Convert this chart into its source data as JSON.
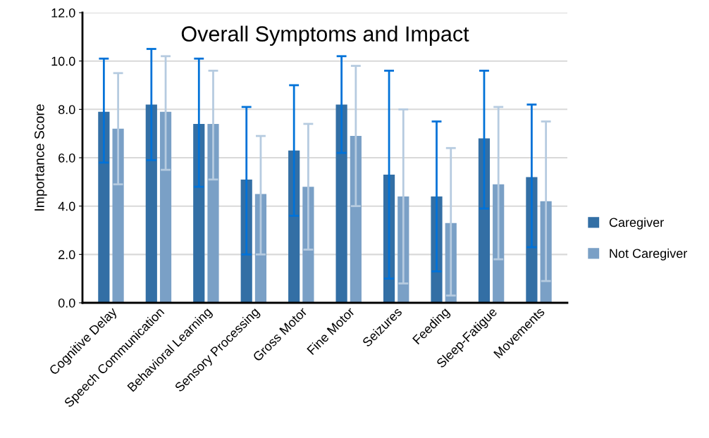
{
  "chart_data": {
    "type": "bar",
    "title": "Overall Symptoms and Impact",
    "ylabel": "Importance Score",
    "categories": [
      "Cognitive Delay",
      "Speech Communication",
      "Behavioral Learning",
      "Sensory Processing",
      "Gross Motor",
      "Fine Motor",
      "Seizures",
      "Feeding",
      "Sleep-Fatigue",
      "Movements"
    ],
    "series": [
      {
        "name": "Caregiver",
        "color": "#336fa5",
        "values": [
          7.9,
          8.2,
          7.4,
          5.1,
          6.3,
          8.2,
          5.3,
          4.4,
          6.8,
          5.2
        ],
        "errors": [
          [
            5.8,
            10.1
          ],
          [
            5.9,
            10.5
          ],
          [
            4.8,
            10.1
          ],
          [
            2.0,
            8.1
          ],
          [
            3.6,
            9.0
          ],
          [
            6.2,
            10.2
          ],
          [
            1.0,
            9.6
          ],
          [
            1.3,
            7.5
          ],
          [
            3.9,
            9.6
          ],
          [
            2.3,
            8.2
          ]
        ]
      },
      {
        "name": "Not Caregiver",
        "color": "#7aa0c6",
        "values": [
          7.2,
          7.9,
          7.4,
          4.5,
          4.8,
          6.9,
          4.4,
          3.3,
          4.9,
          4.2
        ],
        "errors": [
          [
            4.9,
            9.5
          ],
          [
            5.5,
            10.2
          ],
          [
            5.1,
            9.6
          ],
          [
            2.0,
            6.9
          ],
          [
            2.2,
            7.4
          ],
          [
            4.0,
            9.8
          ],
          [
            0.8,
            8.0
          ],
          [
            0.3,
            6.4
          ],
          [
            1.8,
            8.1
          ],
          [
            0.9,
            7.5
          ]
        ]
      }
    ],
    "ylim": [
      0,
      12
    ],
    "yticks": [
      {
        "value": 0,
        "label": "0.0"
      },
      {
        "value": 2,
        "label": "2.0"
      },
      {
        "value": 4,
        "label": "4.0"
      },
      {
        "value": 6,
        "label": "6.0"
      },
      {
        "value": 8,
        "label": "8.0"
      },
      {
        "value": 10,
        "label": "10.0"
      },
      {
        "value": 12,
        "label": "12.0"
      }
    ],
    "grid": "y",
    "legend": "right"
  }
}
